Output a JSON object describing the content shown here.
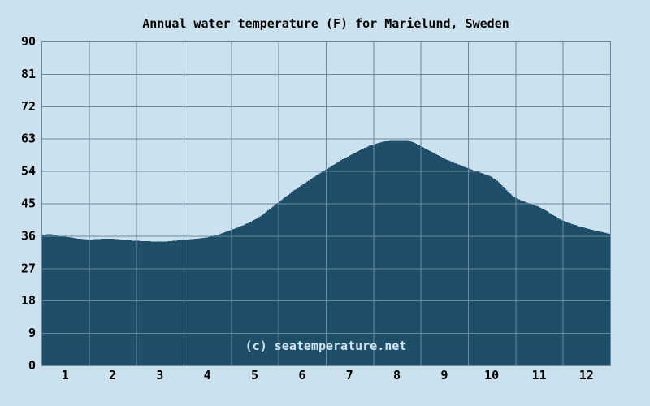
{
  "page": {
    "background": "#cce1ee"
  },
  "chart_data": {
    "type": "area",
    "title": "Annual water temperature (F) for Marielund, Sweden",
    "watermark": "(c) seatemperature.net",
    "grid": true,
    "legend": false,
    "x_axis": {
      "unit": "month",
      "range_months": [
        0,
        12
      ],
      "tick_labels": [
        "1",
        "2",
        "3",
        "4",
        "5",
        "6",
        "7",
        "8",
        "9",
        "10",
        "11",
        "12"
      ]
    },
    "y_axis": {
      "unit": "F",
      "range": [
        0,
        90
      ],
      "ticks": [
        0,
        9,
        18,
        27,
        36,
        45,
        54,
        63,
        72,
        81,
        90
      ]
    },
    "series": [
      {
        "name": "Water temperature (F)",
        "x_months": [
          0,
          0.15,
          0.5,
          1.0,
          1.4,
          2.0,
          2.5,
          3.0,
          3.5,
          4.0,
          4.5,
          5.0,
          5.5,
          6.0,
          6.5,
          7.0,
          7.3,
          7.7,
          8.0,
          8.5,
          9.0,
          9.5,
          10.0,
          10.5,
          11.0,
          11.5,
          12.0
        ],
        "values": [
          36.3,
          36.4,
          35.7,
          35.0,
          35.2,
          34.6,
          34.4,
          34.9,
          35.6,
          37.7,
          40.6,
          45.5,
          50.3,
          54.5,
          58.4,
          61.4,
          62.3,
          62.4,
          60.8,
          57.4,
          54.7,
          52.2,
          46.5,
          43.9,
          40.2,
          38.0,
          36.5
        ],
        "max_value": 62.4,
        "min_value": 34.4
      }
    ],
    "colors": {
      "background": "#cce1ee",
      "area_fill": "#1f4e69",
      "grid": "#6a89a0",
      "text": "#000000",
      "watermark_text": "#cfe4f0"
    }
  }
}
